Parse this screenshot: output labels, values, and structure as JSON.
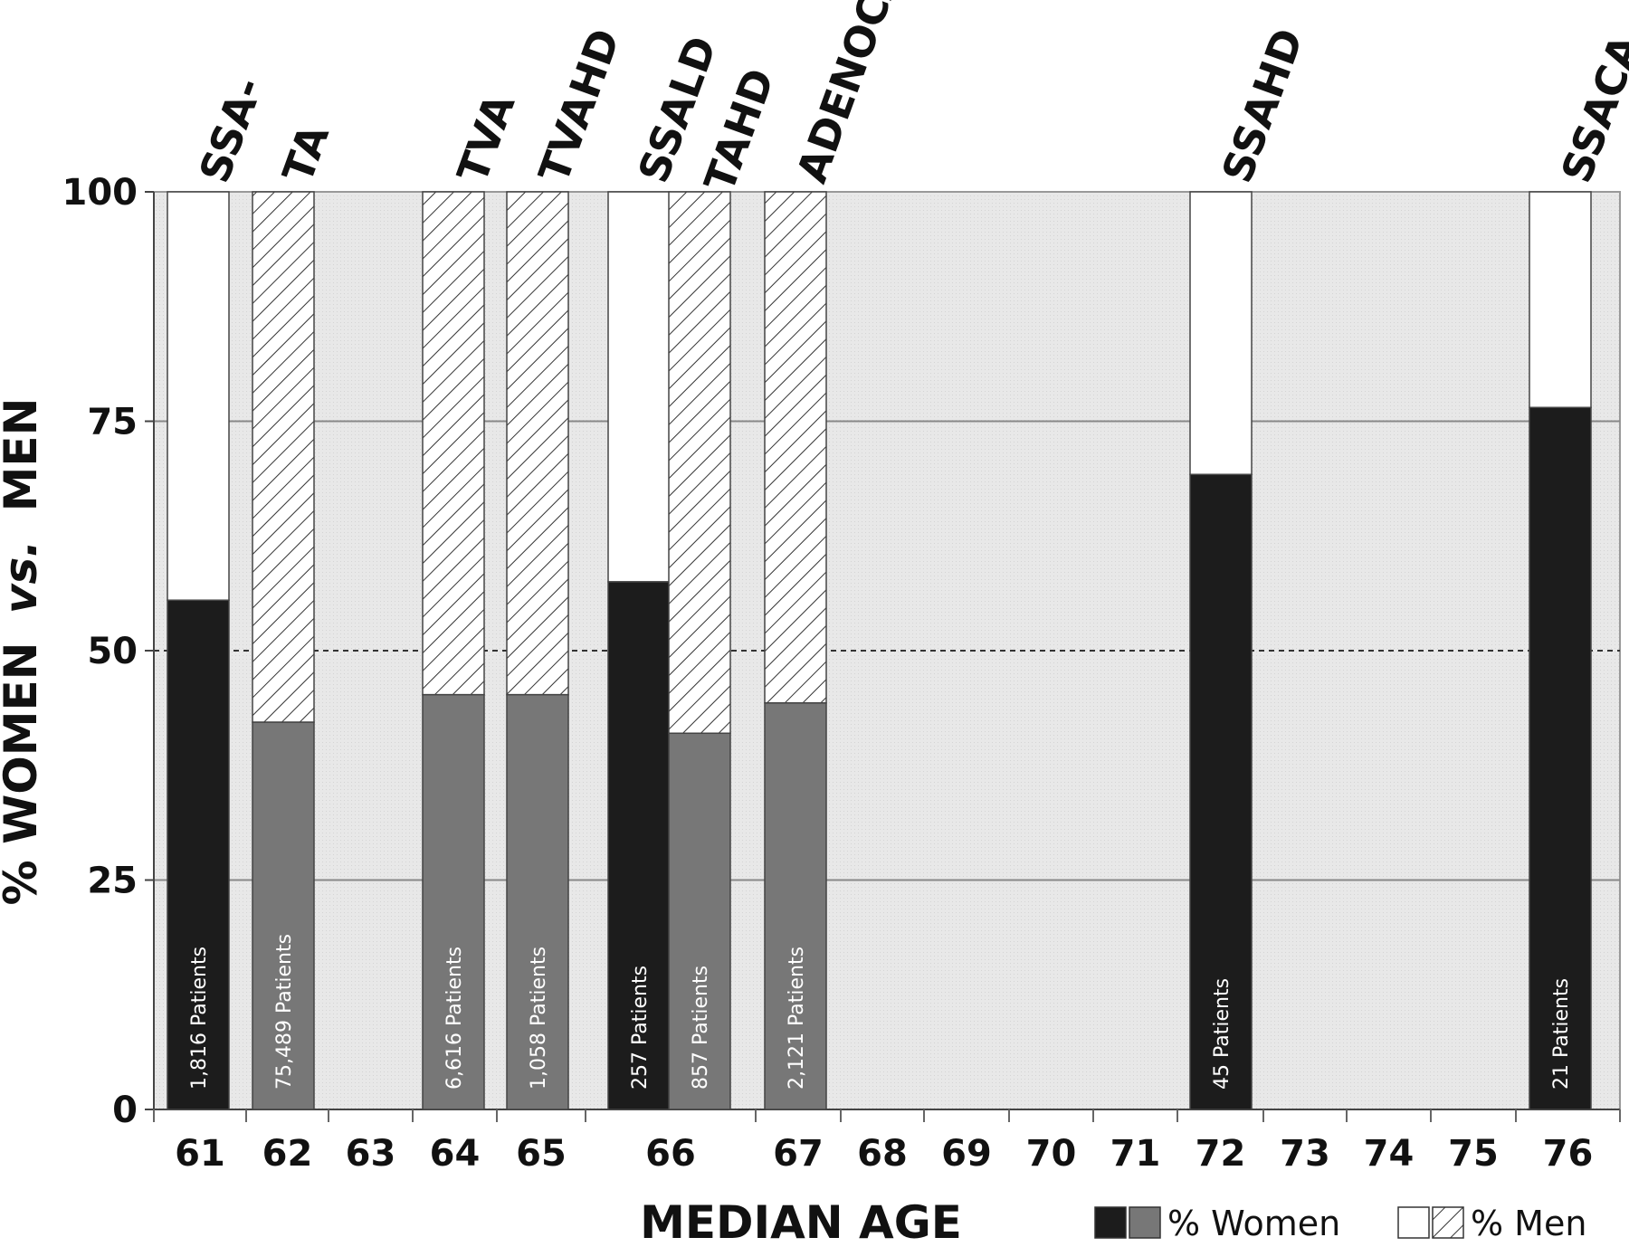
{
  "chart_data": {
    "type": "bar",
    "stacked": true,
    "xlabel": "MEDIAN AGE",
    "ylabel": "% WOMEN",
    "ylabel_vs": "vs.",
    "ylabel_end": "MEN",
    "ylim": [
      0,
      100
    ],
    "yticks": [
      0,
      25,
      50,
      75,
      100
    ],
    "reference_line": {
      "y": 50,
      "style": "dashed"
    },
    "grid": true,
    "x_ticks": [
      61,
      62,
      63,
      64,
      65,
      66,
      67,
      68,
      69,
      70,
      71,
      72,
      73,
      74,
      75,
      76
    ],
    "bars": [
      {
        "category": "SSA-",
        "age": 61,
        "women_pct": 55.5,
        "patients_label": "1,816 Patients",
        "style": "solid"
      },
      {
        "category": "TA",
        "age": 62,
        "women_pct": 42.2,
        "patients_label": "75,489 Patients",
        "style": "hatched"
      },
      {
        "category": "TVA",
        "age": 64,
        "women_pct": 45.2,
        "patients_label": "6,616 Patients",
        "style": "hatched"
      },
      {
        "category": "TVAHD",
        "age": 65,
        "women_pct": 45.2,
        "patients_label": "1,058 Patients",
        "style": "hatched"
      },
      {
        "category": "SSALD",
        "age": 66,
        "women_pct": 57.5,
        "patients_label": "257 Patients",
        "style": "solid"
      },
      {
        "category": "TAHD",
        "age": 66,
        "women_pct": 41.0,
        "patients_label": "857 Patients",
        "style": "hatched"
      },
      {
        "category": "ADENOCA",
        "age": 67,
        "women_pct": 44.3,
        "patients_label": "2,121 Patients",
        "style": "hatched"
      },
      {
        "category": "SSAHD",
        "age": 72,
        "women_pct": 69.2,
        "patients_label": "45 Patients",
        "style": "solid"
      },
      {
        "category": "SSACA",
        "age": 76,
        "women_pct": 76.5,
        "patients_label": "21 Patients",
        "style": "solid"
      }
    ],
    "legend": [
      {
        "label": "% Women",
        "swatches": [
          "#1c1c1c",
          "#777777"
        ]
      },
      {
        "label": "% Men",
        "swatches": [
          "white",
          "hatched"
        ]
      }
    ],
    "legend_position": "bottom-right",
    "colors": {
      "women_solid": "#1c1c1c",
      "women_gray": "#777777",
      "men_solid": "#ffffff",
      "background": "#e6e6e6",
      "background_light": "#eeeeee"
    }
  }
}
